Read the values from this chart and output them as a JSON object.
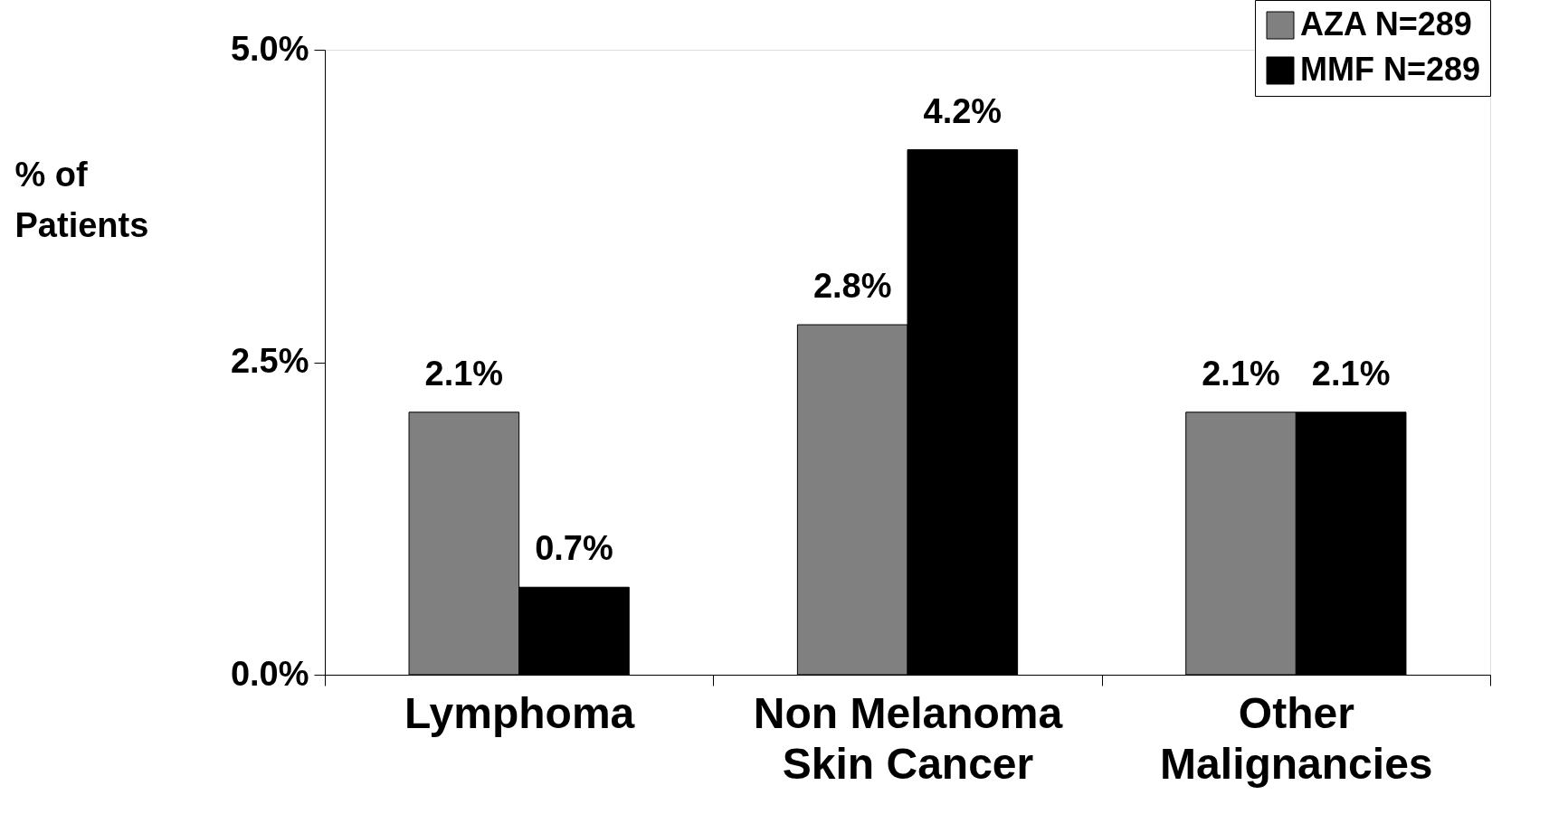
{
  "chart_data": {
    "type": "bar",
    "ylabel": "% of Patients",
    "categories": [
      "Lymphoma",
      "Non Melanoma Skin Cancer",
      "Other Malignancies"
    ],
    "series": [
      {
        "name": "AZA N=289",
        "color": "#808080",
        "values": [
          2.1,
          2.8,
          2.1
        ],
        "value_labels": [
          "2.1%",
          "2.8%",
          "2.1%"
        ]
      },
      {
        "name": "MMF N=289",
        "color": "#000000",
        "values": [
          0.7,
          4.2,
          2.1
        ],
        "value_labels": [
          "0.7%",
          "4.2%",
          "2.1%"
        ]
      }
    ],
    "ylim": [
      0,
      5
    ],
    "yticks": [
      {
        "value": 0,
        "label": "0.0%"
      },
      {
        "value": 2.5,
        "label": "2.5%"
      },
      {
        "value": 5,
        "label": "5.0%"
      }
    ],
    "grid": false,
    "legend": "top right"
  }
}
